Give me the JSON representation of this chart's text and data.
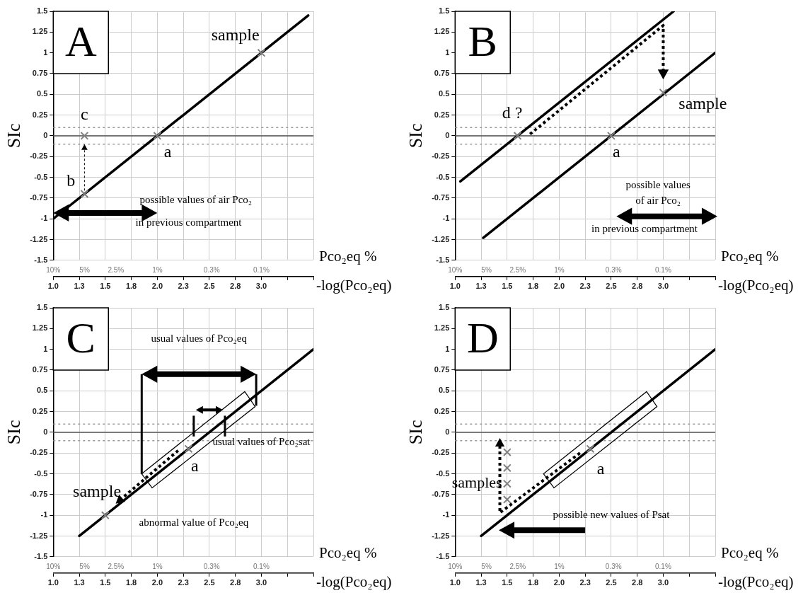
{
  "chart_data": [
    {
      "type": "line",
      "title": "A",
      "ylabel": "SIc",
      "xlabel": "-log(Pco₂eq)",
      "x2label": "Pco₂eq %",
      "log": "x2",
      "xlim": [
        1,
        3.5
      ],
      "xticks": [
        {
          "value": 1,
          "label": "1.0"
        },
        {
          "value": 1.25,
          "label": "1.3"
        },
        {
          "value": 1.5,
          "label": "1.5"
        },
        {
          "value": 1.75,
          "label": "1.8"
        },
        {
          "value": 2,
          "label": "2.0"
        },
        {
          "value": 2.25,
          "label": "2.3"
        },
        {
          "value": 2.5,
          "label": "2.5"
        },
        {
          "value": 2.75,
          "label": "2.8"
        },
        {
          "value": 3,
          "label": "3.0"
        },
        {
          "value": 3.25,
          "label": null
        },
        {
          "value": 3.5,
          "label": null
        }
      ],
      "x2lim": [
        10,
        0.0316
      ],
      "x2ticks": [
        {
          "value": 10,
          "label": "10%"
        },
        {
          "value": 5,
          "label": "5%"
        },
        {
          "value": 2.5,
          "label": "2.5%"
        },
        {
          "value": 1,
          "label": "1%"
        },
        {
          "value": 0.3,
          "label": "0.3%"
        },
        {
          "value": 0.1,
          "label": "0.1%"
        }
      ],
      "ylim": [
        -1.5,
        1.5
      ],
      "yticks": [
        -1.5,
        -1.25,
        -1,
        -0.75,
        -0.5,
        -0.25,
        0,
        0.25,
        0.5,
        0.75,
        1,
        1.25,
        1.5
      ],
      "grid": true,
      "legend": false,
      "ref_lines": [
        {
          "axis": "y",
          "value": 0,
          "color": "#555555",
          "line_style": "solid"
        },
        {
          "axis": "y",
          "value": 0.1,
          "color": "#999999",
          "line_style": "dotted"
        },
        {
          "axis": "y",
          "value": -0.1,
          "color": "#999999",
          "line_style": "dotted"
        }
      ],
      "series": [
        {
          "type": "line",
          "color": "#000000",
          "marker": "none",
          "x": [
            1,
            3.45
          ],
          "values": [
            -1,
            1.45
          ]
        },
        {
          "type": "scatter",
          "color": "#808080",
          "marker": "cross",
          "x": [
            2,
            1.3,
            1.3,
            3
          ],
          "values": [
            0,
            -0.7,
            0,
            1
          ]
        }
      ],
      "annotations": [
        "sample",
        "a",
        "c",
        "b",
        "possible values of air Pco₂",
        "in previous compartment"
      ]
    },
    {
      "type": "line",
      "title": "B",
      "ylabel": "SIc",
      "xlabel": "-log(Pco₂eq)",
      "x2label": "Pco₂eq %",
      "log": "x2",
      "xlim": [
        1,
        3.5
      ],
      "xticks": [
        {
          "value": 1,
          "label": "1.0"
        },
        {
          "value": 1.25,
          "label": "1.3"
        },
        {
          "value": 1.5,
          "label": "1.5"
        },
        {
          "value": 1.75,
          "label": "1.8"
        },
        {
          "value": 2,
          "label": "2.0"
        },
        {
          "value": 2.25,
          "label": "2.3"
        },
        {
          "value": 2.5,
          "label": "2.5"
        },
        {
          "value": 2.75,
          "label": "2.8"
        },
        {
          "value": 3,
          "label": "3.0"
        },
        {
          "value": 3.25,
          "label": null
        },
        {
          "value": 3.5,
          "label": null
        }
      ],
      "x2lim": [
        10,
        0.0316
      ],
      "x2ticks": [
        {
          "value": 10,
          "label": "10%"
        },
        {
          "value": 5,
          "label": "5%"
        },
        {
          "value": 2.5,
          "label": "2.5%"
        },
        {
          "value": 1,
          "label": "1%"
        },
        {
          "value": 0.3,
          "label": "0.3%"
        },
        {
          "value": 0.1,
          "label": "0.1%"
        }
      ],
      "ylim": [
        -1.5,
        1.5
      ],
      "yticks": [
        -1.5,
        -1.25,
        -1,
        -0.75,
        -0.5,
        -0.25,
        0,
        0.25,
        0.5,
        0.75,
        1,
        1.25,
        1.5
      ],
      "grid": true,
      "legend": false,
      "ref_lines": [
        {
          "axis": "y",
          "value": 0,
          "color": "#555555",
          "line_style": "solid"
        },
        {
          "axis": "y",
          "value": 0.1,
          "color": "#999999",
          "line_style": "dotted"
        },
        {
          "axis": "y",
          "value": -0.1,
          "color": "#999999",
          "line_style": "dotted"
        }
      ],
      "series": [
        {
          "type": "line",
          "color": "#000000",
          "marker": "none",
          "x": [
            1.05,
            3.1
          ],
          "values": [
            -0.55,
            1.5
          ]
        },
        {
          "type": "line",
          "color": "#000000",
          "marker": "none",
          "x": [
            1.27,
            3.5
          ],
          "values": [
            -1.23,
            1
          ]
        },
        {
          "type": "scatter",
          "color": "#808080",
          "marker": "cross",
          "x": [
            1.6,
            2.5,
            3
          ],
          "values": [
            0,
            0,
            0.52
          ]
        }
      ],
      "annotations": [
        "d ?",
        "a",
        "sample",
        "possible values",
        "of air Pco₂",
        "in previous compartment"
      ]
    },
    {
      "type": "line",
      "title": "C",
      "ylabel": "SIc",
      "xlabel": "-log(Pco₂eq)",
      "x2label": "Pco₂eq %",
      "log": "x2",
      "xlim": [
        1,
        3.5
      ],
      "xticks": [
        {
          "value": 1,
          "label": "1.0"
        },
        {
          "value": 1.25,
          "label": "1.3"
        },
        {
          "value": 1.5,
          "label": "1.5"
        },
        {
          "value": 1.75,
          "label": "1.8"
        },
        {
          "value": 2,
          "label": "2.0"
        },
        {
          "value": 2.25,
          "label": "2.3"
        },
        {
          "value": 2.5,
          "label": "2.5"
        },
        {
          "value": 2.75,
          "label": "2.8"
        },
        {
          "value": 3,
          "label": "3.0"
        },
        {
          "value": 3.25,
          "label": null
        },
        {
          "value": 3.5,
          "label": null
        }
      ],
      "x2lim": [
        10,
        0.0316
      ],
      "x2ticks": [
        {
          "value": 10,
          "label": "10%"
        },
        {
          "value": 5,
          "label": "5%"
        },
        {
          "value": 2.5,
          "label": "2.5%"
        },
        {
          "value": 1,
          "label": "1%"
        },
        {
          "value": 0.3,
          "label": "0.3%"
        },
        {
          "value": 0.1,
          "label": "0.1%"
        }
      ],
      "ylim": [
        -1.5,
        1.5
      ],
      "yticks": [
        -1.5,
        -1.25,
        -1,
        -0.75,
        -0.5,
        -0.25,
        0,
        0.25,
        0.5,
        0.75,
        1,
        1.25,
        1.5
      ],
      "grid": true,
      "legend": false,
      "ref_lines": [
        {
          "axis": "y",
          "value": 0,
          "color": "#555555",
          "line_style": "solid"
        },
        {
          "axis": "y",
          "value": 0.1,
          "color": "#999999",
          "line_style": "dotted"
        },
        {
          "axis": "y",
          "value": -0.1,
          "color": "#999999",
          "line_style": "dotted"
        }
      ],
      "series": [
        {
          "type": "line",
          "color": "#000000",
          "marker": "none",
          "x": [
            1.25,
            3.5
          ],
          "values": [
            -1.25,
            1
          ]
        },
        {
          "type": "scatter",
          "color": "#808080",
          "marker": "cross",
          "x": [
            2.3,
            1.5
          ],
          "values": [
            -0.2,
            -1
          ]
        }
      ],
      "annotations": [
        "usual values of Pco₂eq",
        {
          "text": "usual values of Pco₂sat",
          "x": 2.5,
          "y": 0
        },
        {
          "text": "a",
          "x": 2.3,
          "y": -0.2
        },
        "sample",
        "abnormal value of Pco₂eq"
      ]
    },
    {
      "type": "line",
      "title": "D",
      "ylabel": "SIc",
      "xlabel": "-log(Pco₂eq)",
      "x2label": "Pco₂eq %",
      "log": "x2",
      "xlim": [
        1,
        3.5
      ],
      "xticks": [
        {
          "value": 1,
          "label": "1.0"
        },
        {
          "value": 1.25,
          "label": "1.3"
        },
        {
          "value": 1.5,
          "label": "1.5"
        },
        {
          "value": 1.75,
          "label": "1.8"
        },
        {
          "value": 2,
          "label": "2.0"
        },
        {
          "value": 2.25,
          "label": "2.3"
        },
        {
          "value": 2.5,
          "label": "2.5"
        },
        {
          "value": 2.75,
          "label": "2.8"
        },
        {
          "value": 3,
          "label": "3.0"
        },
        {
          "value": 3.25,
          "label": null
        },
        {
          "value": 3.5,
          "label": null
        }
      ],
      "x2lim": [
        10,
        0.0316
      ],
      "x2ticks": [
        {
          "value": 10,
          "label": "10%"
        },
        {
          "value": 5,
          "label": "5%"
        },
        {
          "value": 2.5,
          "label": "2.5%"
        },
        {
          "value": 1,
          "label": "1%"
        },
        {
          "value": 0.3,
          "label": "0.3%"
        },
        {
          "value": 0.1,
          "label": "0.1%"
        }
      ],
      "ylim": [
        -1.5,
        1.5
      ],
      "yticks": [
        -1.5,
        -1.25,
        -1,
        -0.75,
        -0.5,
        -0.25,
        0,
        0.25,
        0.5,
        0.75,
        1,
        1.25,
        1.5
      ],
      "grid": true,
      "legend": false,
      "ref_lines": [
        {
          "axis": "y",
          "value": 0,
          "color": "#555555",
          "line_style": "solid"
        },
        {
          "axis": "y",
          "value": 0.1,
          "color": "#999999",
          "line_style": "dotted"
        },
        {
          "axis": "y",
          "value": -0.1,
          "color": "#999999",
          "line_style": "dotted"
        }
      ],
      "series": [
        {
          "type": "line",
          "color": "#000000",
          "marker": "none",
          "x": [
            1.25,
            3.5
          ],
          "values": [
            -1.25,
            1
          ]
        },
        {
          "type": "scatter",
          "color": "#808080",
          "marker": "cross",
          "x": [
            2.3,
            1.5,
            1.5,
            1.5,
            1.5
          ],
          "values": [
            -0.2,
            -0.24,
            -0.43,
            -0.62,
            -0.81
          ]
        }
      ],
      "annotations": [
        "samples",
        "a",
        "possible new values of Psat"
      ]
    }
  ]
}
